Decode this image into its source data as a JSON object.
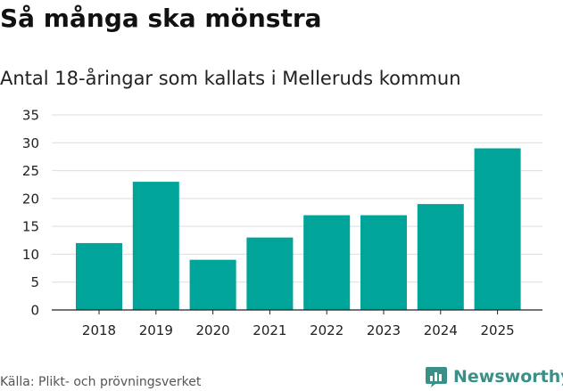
{
  "header": {
    "title": "Så många ska mönstra",
    "subtitle": "Antal 18-åringar som kallats i Melleruds kommun"
  },
  "footer": {
    "source": "Källa: Plikt- och prövningsverket",
    "brand": "Newsworthy",
    "brand_icon": "newsworthy-logo-icon"
  },
  "colors": {
    "bar": "#00a499",
    "grid": "#dddddd",
    "axis": "#222222",
    "brand": "#3a8f87"
  },
  "chart_data": {
    "type": "bar",
    "title": "Så många ska mönstra",
    "subtitle": "Antal 18-åringar som kallats i Melleruds kommun",
    "xlabel": "",
    "ylabel": "",
    "categories": [
      "2018",
      "2019",
      "2020",
      "2021",
      "2022",
      "2023",
      "2024",
      "2025"
    ],
    "values": [
      12,
      23,
      9,
      13,
      17,
      17,
      19,
      29
    ],
    "ylim": [
      0,
      35
    ],
    "yticks": [
      "0",
      "5",
      "10",
      "15",
      "20",
      "25",
      "30",
      "35"
    ],
    "grid": true
  }
}
